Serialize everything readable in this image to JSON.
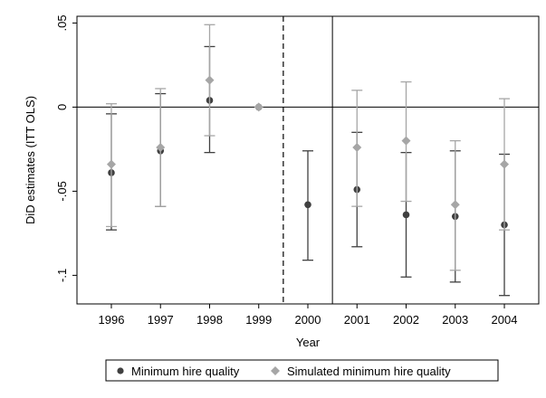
{
  "chart_data": {
    "type": "scatter",
    "xlabel": "Year",
    "ylabel": "DiD estimates (ITT OLS)",
    "x_ticks": [
      "1996",
      "1997",
      "1998",
      "1999",
      "2000",
      "2001",
      "2002",
      "2003",
      "2004"
    ],
    "y_ticks": [
      {
        "value": 0.05,
        "label": ".05"
      },
      {
        "value": 0,
        "label": "0"
      },
      {
        "value": -0.05,
        "label": "-.05"
      },
      {
        "value": -0.1,
        "label": "-.1"
      }
    ],
    "xlim": [
      1995.3,
      2004.7
    ],
    "ylim": [
      -0.117,
      0.054
    ],
    "reference_lines": {
      "y_zero": 0,
      "dashed_x": 1999.5,
      "solid_x": 2000.5
    },
    "series": [
      {
        "name": "Minimum hire quality",
        "color": "#404040",
        "marker": "circle",
        "x": [
          1996,
          1997,
          1998,
          1999,
          2000,
          2001,
          2002,
          2003,
          2004
        ],
        "y": [
          -0.039,
          -0.026,
          0.004,
          0.0,
          -0.058,
          -0.049,
          -0.064,
          -0.065,
          -0.07
        ],
        "ci_low": [
          -0.073,
          -0.059,
          -0.027,
          null,
          -0.091,
          -0.083,
          -0.101,
          -0.104,
          -0.112
        ],
        "ci_high": [
          -0.004,
          0.008,
          0.036,
          null,
          -0.026,
          -0.015,
          -0.027,
          -0.026,
          -0.028
        ]
      },
      {
        "name": "Simulated minimum hire quality",
        "color": "#a6a6a6",
        "marker": "diamond",
        "x": [
          1996,
          1997,
          1998,
          1999,
          2001,
          2002,
          2003,
          2004
        ],
        "y": [
          -0.034,
          -0.024,
          0.016,
          0.0,
          -0.024,
          -0.02,
          -0.058,
          -0.034
        ],
        "ci_low": [
          -0.071,
          -0.059,
          -0.017,
          null,
          -0.059,
          -0.056,
          -0.097,
          -0.073
        ],
        "ci_high": [
          0.002,
          0.011,
          0.049,
          null,
          0.01,
          0.015,
          -0.02,
          0.005
        ]
      }
    ],
    "legend": {
      "position": "bottom",
      "entries": [
        "Minimum hire quality",
        "Simulated minimum hire quality"
      ]
    }
  }
}
